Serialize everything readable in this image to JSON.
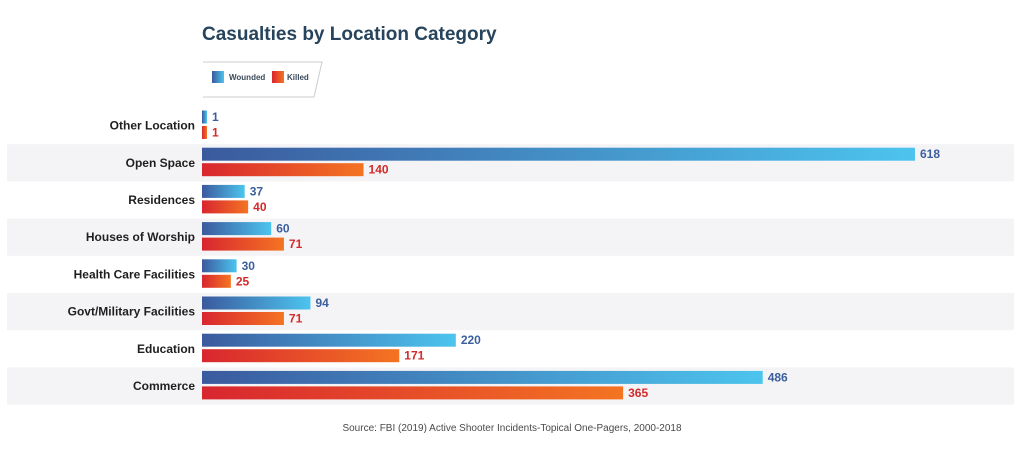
{
  "chart_data": {
    "type": "bar",
    "orientation": "horizontal",
    "title": "Casualties by Location Category",
    "categories": [
      "Other Location",
      "Open Space",
      "Residences",
      "Houses of Worship",
      "Health Care Facilities",
      "Govt/Military Facilities",
      "Education",
      "Commerce"
    ],
    "series": [
      {
        "name": "Wounded",
        "values": [
          1,
          618,
          37,
          60,
          30,
          94,
          220,
          486
        ]
      },
      {
        "name": "Killed",
        "values": [
          1,
          140,
          40,
          71,
          25,
          71,
          171,
          365
        ]
      }
    ],
    "xlim": [
      0,
      618
    ],
    "legend_position": "top-left",
    "grid": false,
    "source": "Source: FBI (2019) Active Shooter Incidents-Topical One-Pagers, 2000-2018"
  },
  "colors": {
    "wounded_start": "#3b5a9e",
    "wounded_end": "#4cc4ee",
    "killed_start": "#d8262f",
    "killed_end": "#f47422",
    "band": "#f4f4f6",
    "title": "#27445c"
  }
}
